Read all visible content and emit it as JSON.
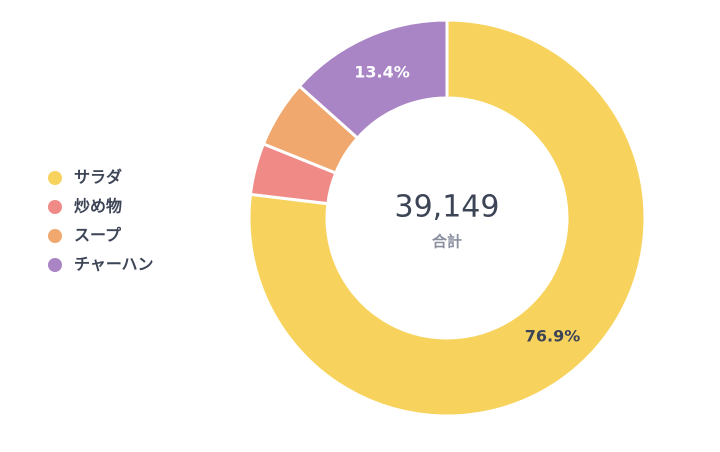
{
  "chart_data": {
    "type": "donut",
    "categories": [
      "サラダ",
      "炒め物",
      "スープ",
      "チャーハン"
    ],
    "values": [
      76.9,
      4.2,
      5.5,
      13.4
    ],
    "value_labels": [
      "76.9%",
      null,
      null,
      "13.4%"
    ],
    "colors": [
      "#f7d35e",
      "#ef8a87",
      "#f0a86e",
      "#a985c6"
    ],
    "total": {
      "value": 39149,
      "label": "39,149"
    },
    "total_caption": "合計",
    "legend": "left"
  }
}
